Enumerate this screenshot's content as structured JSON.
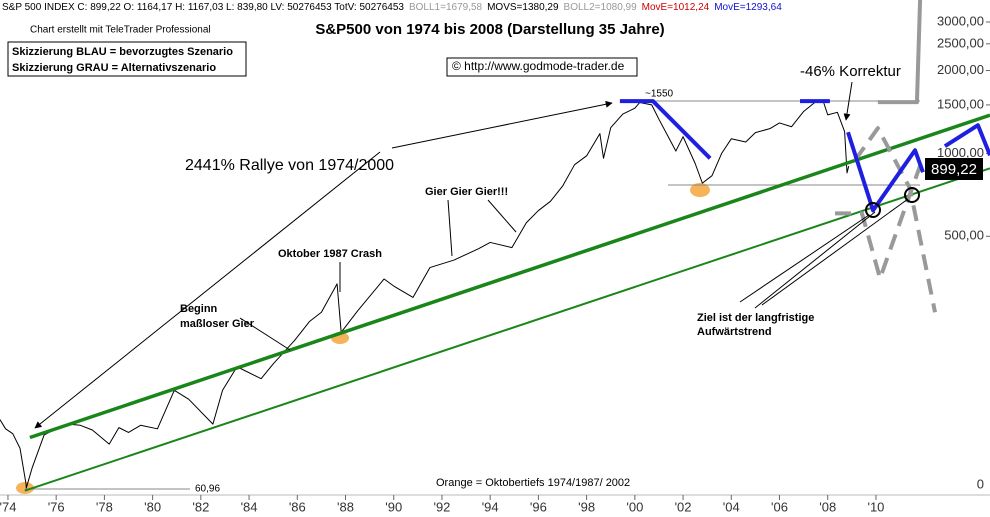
{
  "header": [
    {
      "text": "S&P 500 INDEX C: 899,22 O: 1164,17 H: 1167,03 L: 839,80 LV: 50276453 TotV: 50276453",
      "color": "#000000"
    },
    {
      "text": "BOLL1=1679,58",
      "color": "#999999"
    },
    {
      "text": "MOVS=1380,29",
      "color": "#000000"
    },
    {
      "text": "BOLL2=1080,99",
      "color": "#999999"
    },
    {
      "text": "MovE=1012,24",
      "color": "#d00000"
    },
    {
      "text": "MovE=1293,64",
      "color": "#1010d0"
    }
  ],
  "credit": "Chart erstellt mit TeleTrader Professional",
  "legend_box": [
    "Skizzierung BLAU = bevorzugtes Szenario",
    "Skizzierung GRAU = Alternativszenario"
  ],
  "copyright": "© http://www.godmode-trader.de",
  "chart_data": {
    "type": "line",
    "title": "S&P500 von 1974 bis 2008 (Darstellung 35 Jahre)",
    "yscale": "log",
    "grid": false,
    "xlim": [
      1973.67,
      2014.73
    ],
    "ylim": [
      57.5,
      3606
    ],
    "xticks": [
      {
        "value": 1974,
        "label": "'74"
      },
      {
        "value": 1976,
        "label": "'76"
      },
      {
        "value": 1978,
        "label": "'78"
      },
      {
        "value": 1980,
        "label": "'80"
      },
      {
        "value": 1982,
        "label": "'82"
      },
      {
        "value": 1984,
        "label": "'84"
      },
      {
        "value": 1986,
        "label": "'86"
      },
      {
        "value": 1988,
        "label": "'88"
      },
      {
        "value": 1990,
        "label": "'90"
      },
      {
        "value": 1992,
        "label": "'92"
      },
      {
        "value": 1994,
        "label": "'94"
      },
      {
        "value": 1996,
        "label": "'96"
      },
      {
        "value": 1998,
        "label": "'98"
      },
      {
        "value": 2000,
        "label": "'00"
      },
      {
        "value": 2002,
        "label": "'02"
      },
      {
        "value": 2004,
        "label": "'04"
      },
      {
        "value": 2006,
        "label": "'06"
      },
      {
        "value": 2008,
        "label": "'08"
      },
      {
        "value": 2010,
        "label": "'10"
      }
    ],
    "yticks": [
      {
        "value": 500,
        "label": "500,00"
      },
      {
        "value": 1000,
        "label": "1000,00"
      },
      {
        "value": 1500,
        "label": "1500,00"
      },
      {
        "value": 2000,
        "label": "2000,00"
      },
      {
        "value": 2500,
        "label": "2500,00"
      },
      {
        "value": 3000,
        "label": "3000,00"
      }
    ],
    "y_floor_label": "0",
    "series": [
      {
        "color": "#000000",
        "width": 1,
        "dash": false,
        "x": [
          1973.67,
          1973.9,
          1974.2,
          1974.5,
          1974.75,
          1974.76,
          1975.0,
          1975.5,
          1976.0,
          1976.5,
          1977.0,
          1977.5,
          1978.2,
          1978.6,
          1979.0,
          1979.5,
          1980.2,
          1980.9,
          1981.5,
          1982.5,
          1982.9,
          1983.5,
          1984.5,
          1985.0,
          1985.9,
          1986.5,
          1987.0,
          1987.65,
          1987.82,
          1988.5,
          1989.6,
          1990.0,
          1990.8,
          1991.5,
          1992.5,
          1993.5,
          1994.0,
          1994.9,
          1995.5,
          1996.0,
          1996.5,
          1997.0,
          1997.5,
          1998.0,
          1998.55,
          1998.7,
          1999.0,
          1999.5,
          2000.0,
          2000.2,
          2000.7,
          2001.0,
          2001.7,
          2002.0,
          2002.5,
          2002.8,
          2003.2,
          2003.6,
          2004.0,
          2004.6,
          2005.0,
          2005.6,
          2006.0,
          2006.5,
          2007.0,
          2007.5,
          2007.8,
          2008.0,
          2008.4,
          2008.7,
          2008.8,
          2008.87
        ],
        "values": [
          108,
          100,
          96,
          85,
          63,
          60.96,
          72,
          95,
          100,
          104,
          103,
          99,
          88,
          101,
          97,
          103,
          100,
          138,
          128,
          104,
          138,
          168,
          152,
          172,
          210,
          245,
          265,
          336,
          224,
          268,
          350,
          330,
          300,
          385,
          410,
          450,
          475,
          455,
          560,
          620,
          670,
          760,
          910,
          980,
          1180,
          960,
          1240,
          1390,
          1460,
          1530,
          1500,
          1330,
          1020,
          1150,
          920,
          780,
          830,
          1000,
          1130,
          1100,
          1190,
          1230,
          1290,
          1250,
          1420,
          1540,
          1560,
          1380,
          1410,
          1200,
          850,
          899.22
        ]
      },
      {
        "color": "#1a861a",
        "width": 3.5,
        "dash": false,
        "x": [
          1974.91,
          2014.73
        ],
        "values": [
          93,
          1377
        ]
      },
      {
        "color": "#1a861a",
        "width": 2,
        "dash": false,
        "x": [
          1974.7,
          2014.73
        ],
        "values": [
          59.6,
          883
        ]
      },
      {
        "color": "#999999",
        "width": 4,
        "dash": false,
        "x": [
          2010.08,
          2011.7,
          2011.83
        ],
        "values": [
          1535,
          1535,
          3606
        ]
      },
      {
        "color": "#999999",
        "width": 4,
        "dash": true,
        "x": [
          2008.3,
          2009.42,
          2010.17,
          2011.91,
          null,
          2009.13,
          2010.08,
          2011.41,
          2012.45
        ],
        "values": [
          606,
          606,
          352,
          944,
          null,
          944,
          1235,
          747,
          265
        ]
      },
      {
        "color": "#1f1fe0",
        "width": 4,
        "dash": false,
        "x": [
          1999.38,
          2000.75,
          2003.12,
          null,
          2006.85,
          2008.09,
          null,
          2008.84,
          2009.88,
          2011.62,
          2011.95,
          null,
          2012.86,
          2014.23,
          2014.73
        ],
        "values": [
          1549,
          1549,
          960,
          null,
          1549,
          1549,
          null,
          1194,
          621,
          1027,
          855,
          null,
          1062,
          1266,
          985
        ]
      }
    ],
    "last_value_label": "899,22",
    "low_label": "60,96",
    "peak_label": "~1550",
    "annotations": [
      "-46% Korrektur",
      "2441% Rallye von 1974/2000",
      "Gier Gier Gier!!!",
      "Oktober 1987 Crash",
      [
        "Beginn",
        "maßloser Gier"
      ],
      [
        "Ziel ist der langfristige",
        "Aufwärtstrend"
      ],
      "Orange = Oktobertiefs  1974/1987/ 2002"
    ]
  }
}
